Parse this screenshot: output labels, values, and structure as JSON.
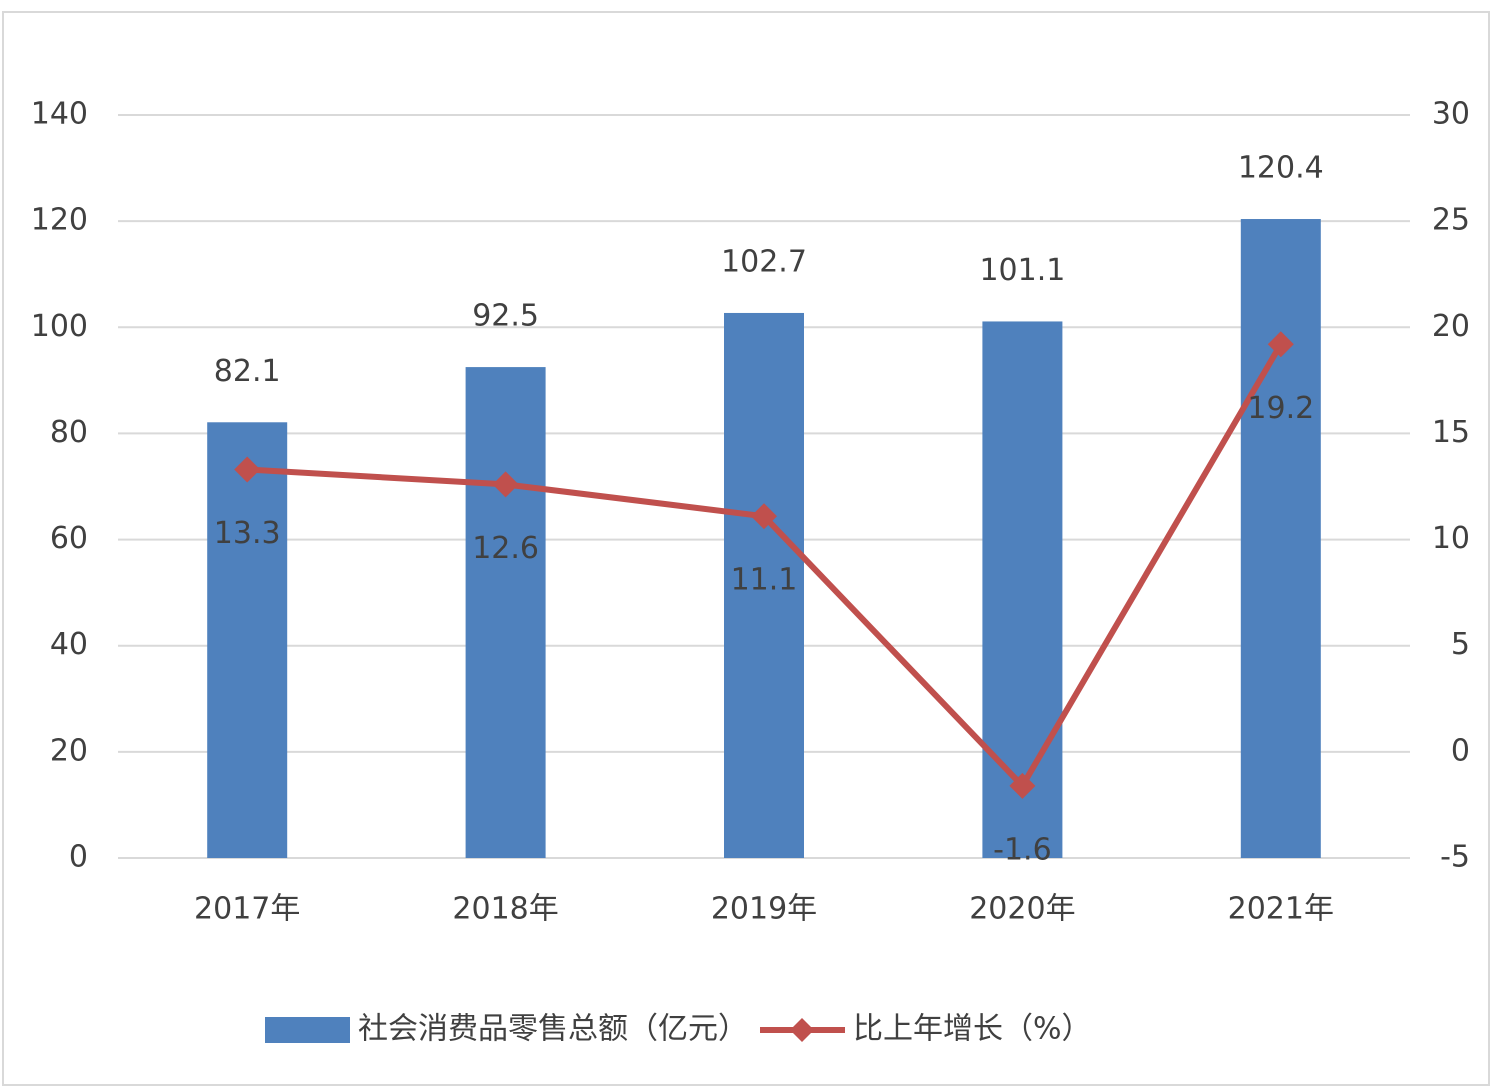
{
  "chart_data": {
    "type": "bar",
    "categories": [
      "2017年",
      "2018年",
      "2019年",
      "2020年",
      "2021年"
    ],
    "series": [
      {
        "name": "社会消费品零售总额（亿元）",
        "color": "#4f81bd",
        "values": [
          82.1,
          92.5,
          102.7,
          101.1,
          120.4
        ]
      },
      {
        "name": "比上年增长（%）",
        "type": "line",
        "axis": "y2",
        "color": "#c0504d",
        "values": [
          13.3,
          12.6,
          11.1,
          -1.6,
          19.2
        ]
      }
    ],
    "ylim": [
      0,
      140
    ],
    "yticks": [
      0,
      20,
      40,
      60,
      80,
      100,
      120,
      140
    ],
    "y2lim": [
      -5,
      30
    ],
    "y2ticks": [
      -5,
      0,
      5,
      10,
      15,
      20,
      25,
      30
    ],
    "grid": true,
    "legend": "bottom"
  }
}
